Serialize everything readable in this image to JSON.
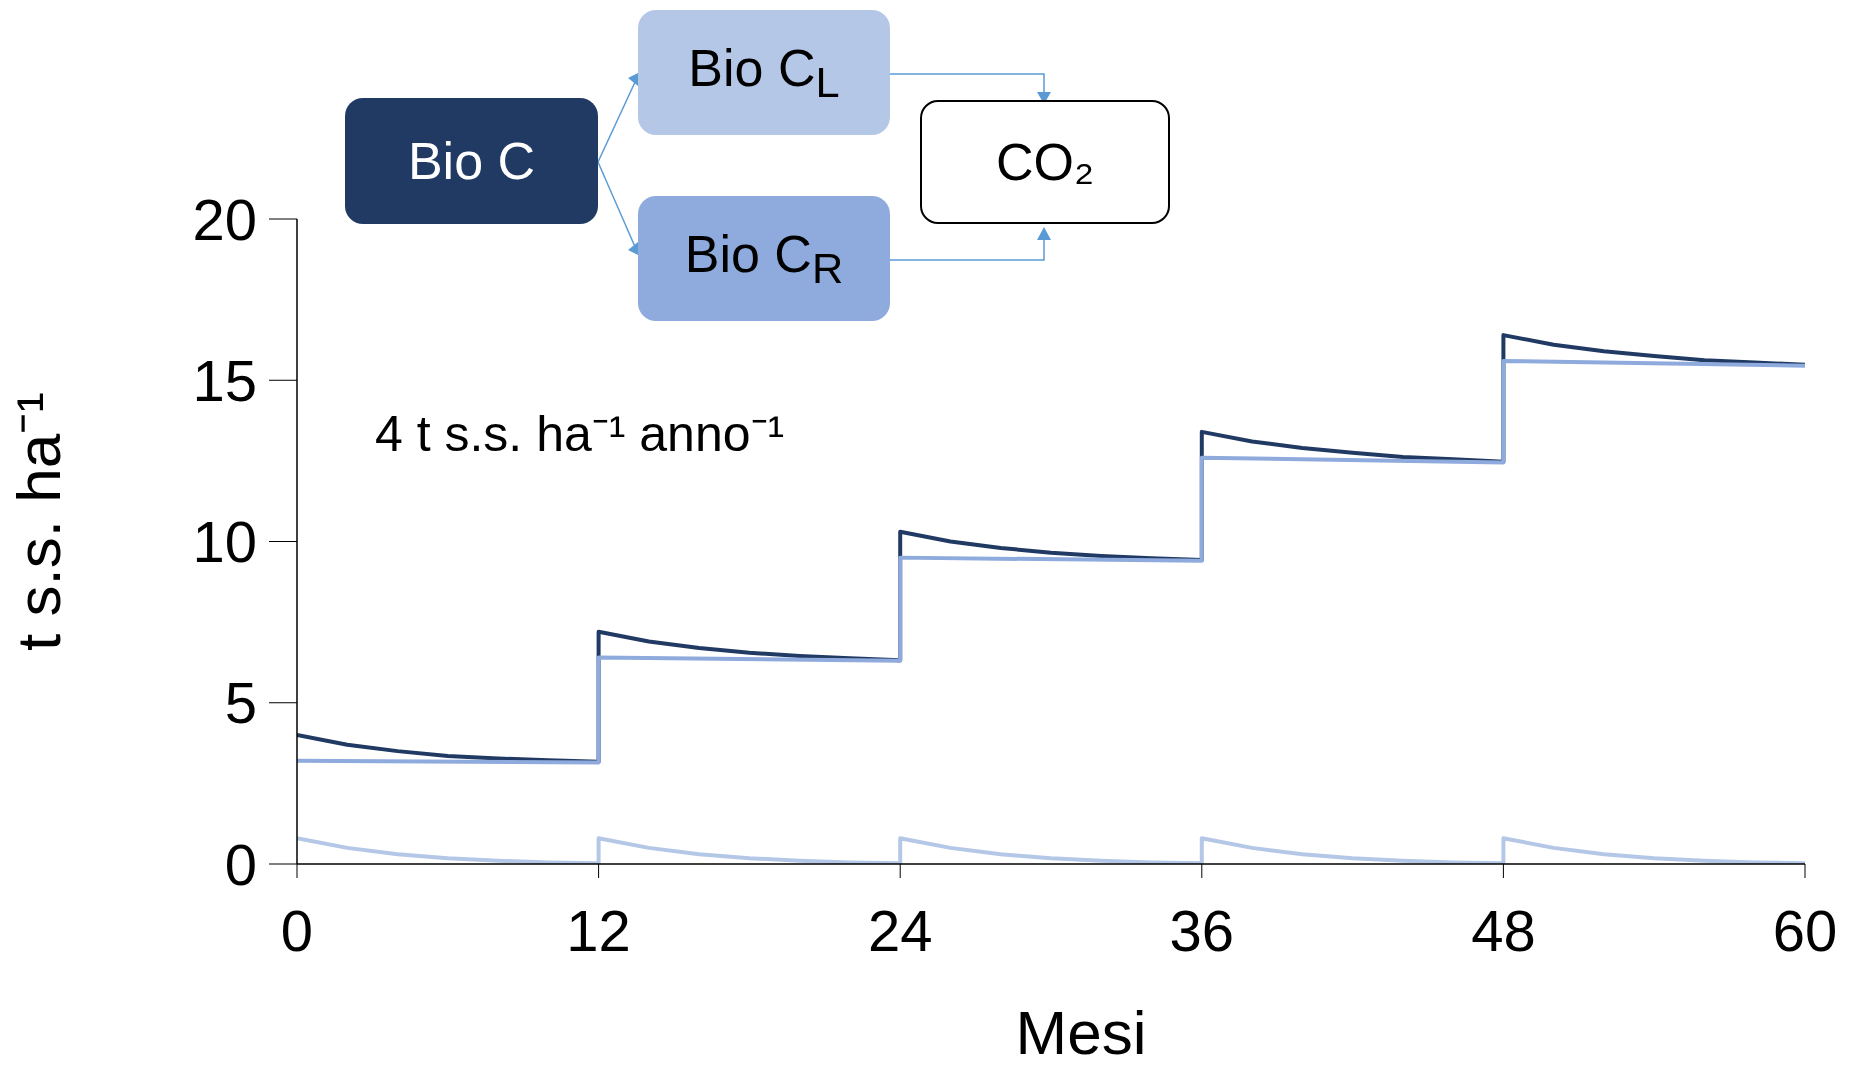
{
  "chart_data": {
    "type": "line",
    "xlabel": "Mesi",
    "ylabel": "t s.s. ha⁻¹",
    "xlim": [
      0,
      60
    ],
    "xticks": [
      0,
      12,
      24,
      36,
      48,
      60
    ],
    "ylim": [
      0,
      20
    ],
    "yticks": [
      0,
      5,
      10,
      15,
      20
    ],
    "legend": "top",
    "marker": "none",
    "line_style": "solid",
    "annotations": [
      "4 t s.s. ha⁻¹ anno⁻¹",
      "CO₂"
    ],
    "series": [
      {
        "name": "Bio C",
        "color": "#213a63",
        "x": [
          0,
          2,
          4,
          6,
          8,
          10,
          12,
          12,
          14,
          16,
          18,
          20,
          22,
          24,
          24,
          26,
          28,
          30,
          32,
          34,
          36,
          36,
          38,
          40,
          42,
          44,
          46,
          48,
          48,
          50,
          52,
          54,
          56,
          58,
          60
        ],
        "values": [
          4.0,
          3.7,
          3.5,
          3.35,
          3.27,
          3.22,
          3.17,
          7.2,
          6.9,
          6.7,
          6.55,
          6.45,
          6.38,
          6.32,
          10.3,
          10.0,
          9.8,
          9.65,
          9.55,
          9.48,
          9.43,
          13.4,
          13.1,
          12.9,
          12.75,
          12.62,
          12.55,
          12.47,
          16.4,
          16.1,
          15.9,
          15.75,
          15.62,
          15.55,
          15.48
        ]
      },
      {
        "name": "Bio C$_{L}$",
        "color": "#b4c7e7",
        "x": [
          0,
          2,
          4,
          6,
          8,
          10,
          12,
          12,
          14,
          16,
          18,
          20,
          22,
          24,
          24,
          26,
          28,
          30,
          32,
          34,
          36,
          36,
          38,
          40,
          42,
          44,
          46,
          48,
          48,
          50,
          52,
          54,
          56,
          58,
          60
        ],
        "values": [
          0.8,
          0.5,
          0.3,
          0.18,
          0.1,
          0.05,
          0.02,
          0.8,
          0.5,
          0.3,
          0.18,
          0.1,
          0.05,
          0.02,
          0.8,
          0.5,
          0.3,
          0.18,
          0.1,
          0.05,
          0.02,
          0.8,
          0.5,
          0.3,
          0.18,
          0.1,
          0.05,
          0.02,
          0.8,
          0.5,
          0.3,
          0.18,
          0.1,
          0.05,
          0.02
        ]
      },
      {
        "name": "Bio C$_{R}$",
        "color": "#8faadc",
        "x": [
          0,
          12,
          12,
          24,
          24,
          36,
          36,
          48,
          48,
          60
        ],
        "values": [
          3.2,
          3.15,
          6.4,
          6.3,
          9.5,
          9.4,
          12.6,
          12.45,
          15.6,
          15.45
        ]
      }
    ]
  }
}
